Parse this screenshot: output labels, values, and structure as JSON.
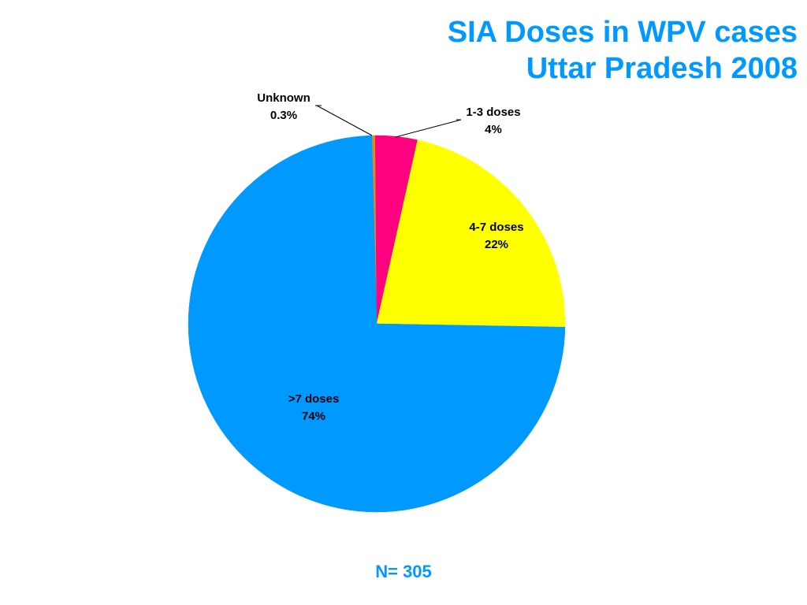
{
  "chart_data": {
    "type": "pie",
    "title": [
      "SIA Doses in WPV cases",
      "Uttar Pradesh 2008"
    ],
    "slices": [
      {
        "label": "Unknown",
        "value_label": "0.3%",
        "value": 0.3,
        "color": "#E08A1E"
      },
      {
        "label": "1-3 doses",
        "value_label": "4%",
        "value": 3.6,
        "color": "#FF0080"
      },
      {
        "label": "4-7 doses",
        "value_label": "22%",
        "value": 21.8,
        "color": "#FFFF00"
      },
      {
        "label": ">7 doses",
        "value_label": "74%",
        "value": 74.3,
        "color": "#0099FF"
      }
    ],
    "start_angle_deg": -1.5,
    "direction": "clockwise",
    "footnote": "N= 305"
  }
}
